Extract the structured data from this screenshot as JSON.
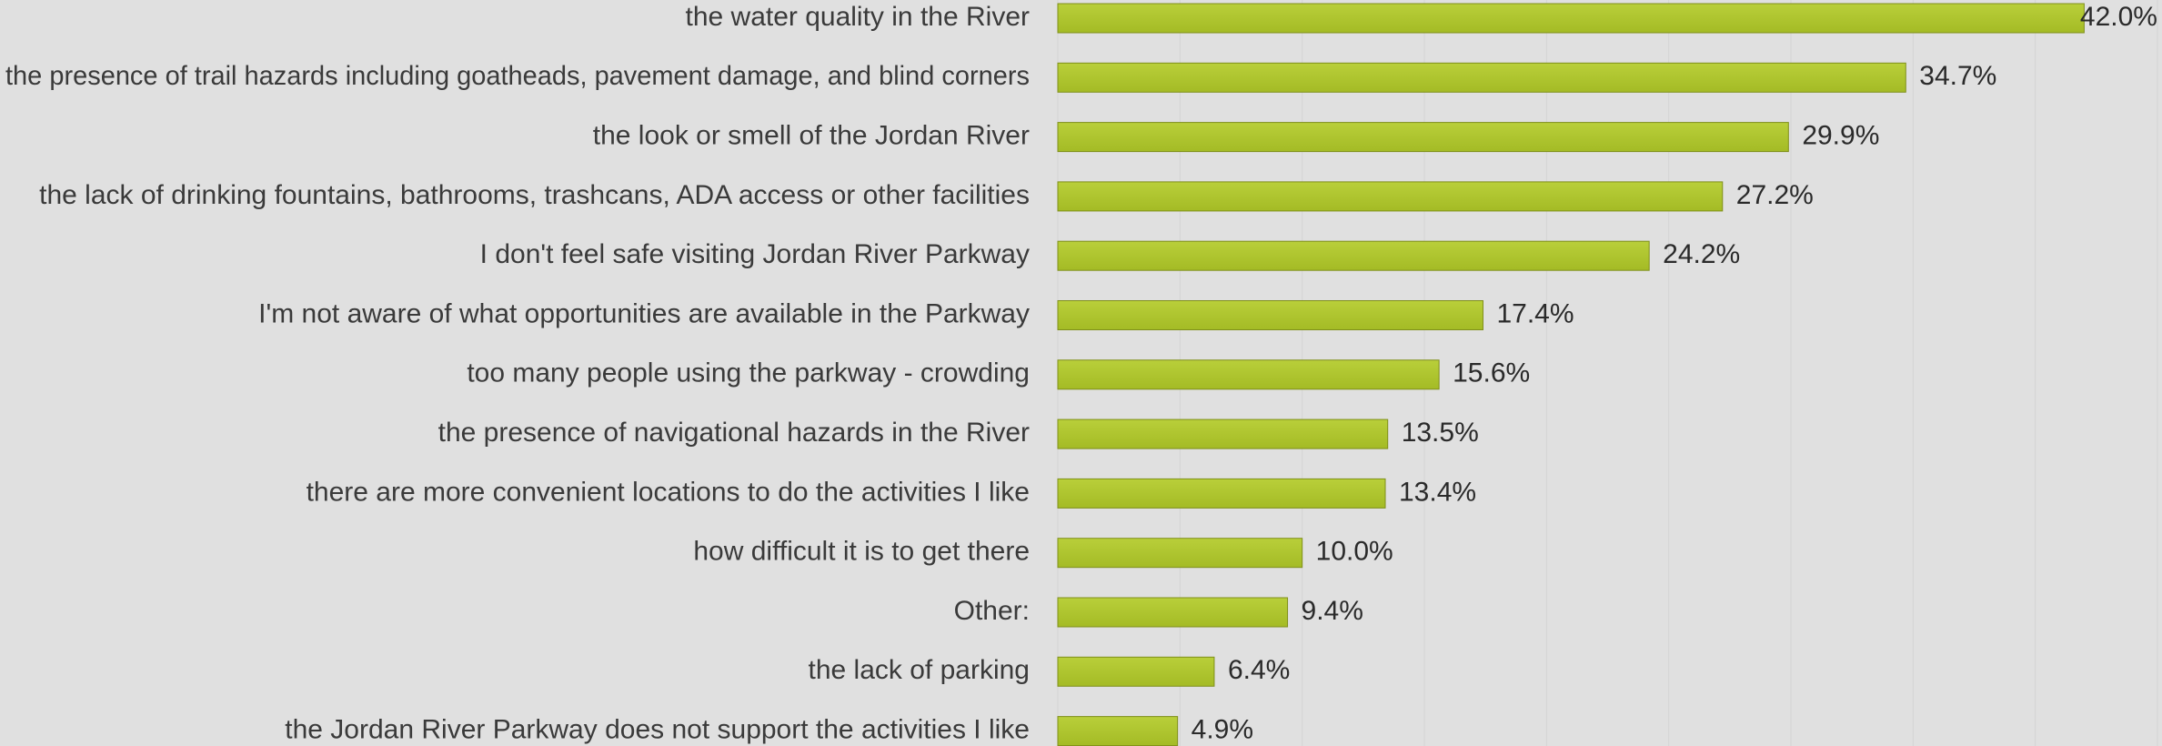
{
  "chart_data": {
    "type": "bar",
    "orientation": "horizontal",
    "title": "",
    "xlabel": "",
    "ylabel": "",
    "xlim": [
      0,
      45
    ],
    "grid": true,
    "legend": "none",
    "value_suffix": "%",
    "categories": [
      "the water quality in the River",
      "the presence of trail hazards including goatheads, pavement damage, and blind corners",
      "the look or smell of the Jordan River",
      "the lack of drinking fountains, bathrooms, trashcans, ADA access or other facilities",
      "I don't feel safe visiting Jordan River Parkway",
      "I'm not aware of what opportunities are available in the Parkway",
      "too many people using the parkway - crowding",
      "the presence of navigational hazards in the River",
      "there are more convenient locations to do the activities I like",
      "how difficult it is to get there",
      "Other:",
      "the lack of parking",
      "the Jordan River Parkway does not support the activities I like"
    ],
    "values": [
      42.0,
      34.7,
      29.9,
      27.2,
      24.2,
      17.4,
      15.6,
      13.5,
      13.4,
      10.0,
      9.4,
      6.4,
      4.9
    ],
    "value_labels": [
      "42.0%",
      "34.7%",
      "29.9%",
      "27.2%",
      "24.2%",
      "17.4%",
      "15.6%",
      "13.5%",
      "13.4%",
      "10.0%",
      "9.4%",
      "6.4%",
      "4.9%"
    ],
    "colors": {
      "bar": "#a4bb25",
      "bar_highlight": "#b9cf3a",
      "bar_border": "#7f8f1a",
      "background": "#e0e0e0",
      "grid": "#d4d4d4",
      "text": "#3a3a3a"
    }
  }
}
